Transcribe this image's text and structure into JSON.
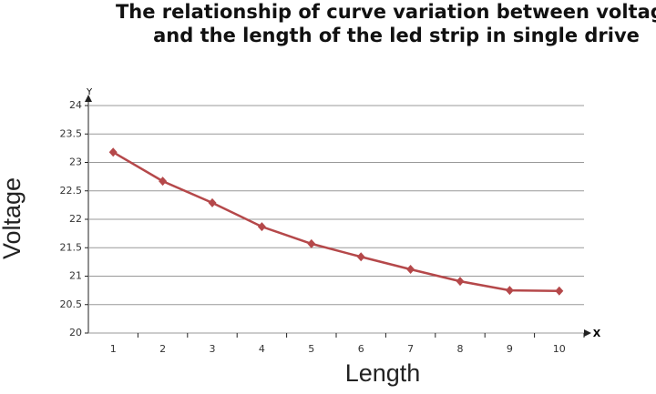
{
  "chart_data": {
    "type": "line",
    "title": [
      "The relationship of curve variation between voltage",
      "and the length of the led strip in single drive"
    ],
    "x_label": "Length",
    "y_label": "Voltage",
    "x_axis_name": "X",
    "y_axis_name": "Y",
    "categories": [
      "1",
      "2",
      "3",
      "4",
      "5",
      "6",
      "7",
      "8",
      "9",
      "10"
    ],
    "series": [
      {
        "name": "Voltage",
        "color": "#b5484a",
        "values": [
          23.18,
          22.67,
          22.29,
          21.87,
          21.57,
          21.34,
          21.12,
          20.91,
          20.75,
          20.74
        ]
      }
    ],
    "ylim": [
      20,
      24
    ],
    "yticks": [
      20,
      20.5,
      21,
      21.5,
      22,
      22.5,
      23,
      23.5,
      24
    ],
    "grid": true
  }
}
